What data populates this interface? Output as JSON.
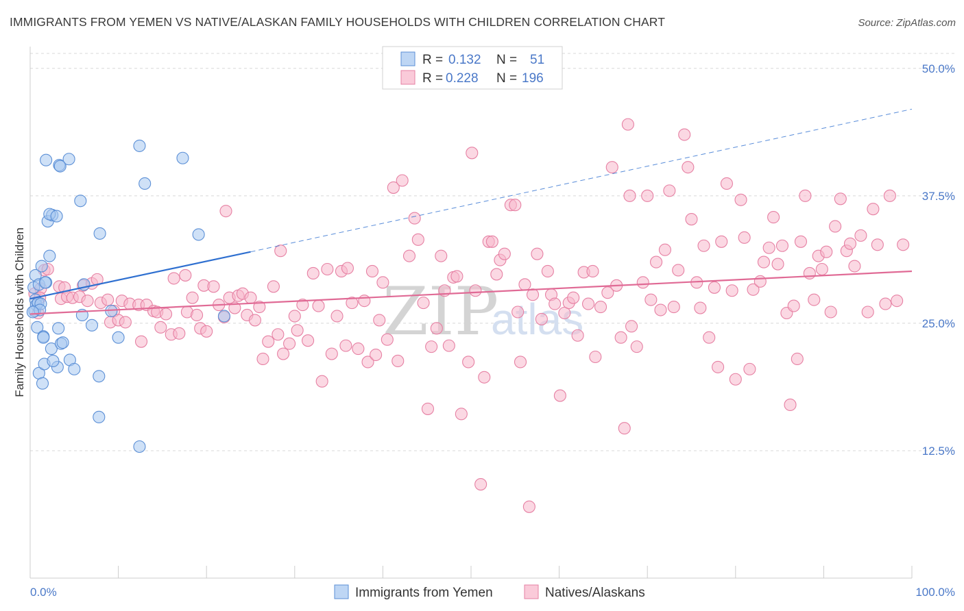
{
  "header": {
    "title": "IMMIGRANTS FROM YEMEN VS NATIVE/ALASKAN FAMILY HOUSEHOLDS WITH CHILDREN CORRELATION CHART",
    "source": "Source: ZipAtlas.com"
  },
  "watermark": {
    "zip": "ZIP",
    "atlas": "atlas"
  },
  "legend": {
    "r_label": "R =",
    "n_label": "N =",
    "rows": [
      {
        "r": "0.132",
        "n": "51",
        "color": "#a8c8f0"
      },
      {
        "r": "0.228",
        "n": "196",
        "color": "#f8b8cc"
      }
    ]
  },
  "bottom_legend": [
    "Immigrants from Yemen",
    "Natives/Alaskans"
  ],
  "colors": {
    "blue_fill": "#a8c8f0",
    "blue_stroke": "#5b8fd6",
    "blue_line": "#2e6fd0",
    "pink_fill": "#f8b8cc",
    "pink_stroke": "#e680a3",
    "pink_line": "#e06a95",
    "grid": "#d8d8d8",
    "tick_label": "#4a78c8"
  },
  "chart_data": {
    "type": "scatter",
    "title": "IMMIGRANTS FROM YEMEN VS NATIVE/ALASKAN FAMILY HOUSEHOLDS WITH CHILDREN CORRELATION CHART",
    "xlabel": "",
    "ylabel": "Family Households with Children",
    "xlim": [
      0,
      100
    ],
    "ylim": [
      0,
      52
    ],
    "x_tick_labels": [
      "0.0%",
      "100.0%"
    ],
    "y_ticks": [
      12.5,
      25.0,
      37.5,
      50.0
    ],
    "y_tick_labels": [
      "12.5%",
      "25.0%",
      "37.5%",
      "50.0%"
    ],
    "grid": true,
    "legend_position": "top-center",
    "series": [
      {
        "name": "Immigrants from Yemen",
        "R": 0.132,
        "N": 51,
        "trend": {
          "x": [
            0,
            25
          ],
          "y": [
            27.4,
            32.0
          ],
          "dashed_extension": {
            "x": [
              25,
              100
            ],
            "y": [
              32.0,
              46.0
            ]
          }
        },
        "points": [
          [
            0.4,
            28.5
          ],
          [
            0.6,
            27.3
          ],
          [
            0.7,
            26.8
          ],
          [
            0.5,
            26.2
          ],
          [
            0.9,
            27.0
          ],
          [
            0.6,
            29.7
          ],
          [
            0.8,
            24.6
          ],
          [
            1.2,
            26.9
          ],
          [
            1.0,
            28.8
          ],
          [
            1.3,
            30.6
          ],
          [
            1.8,
            29.0
          ],
          [
            2.2,
            31.6
          ],
          [
            2.0,
            35.0
          ],
          [
            2.5,
            35.6
          ],
          [
            2.2,
            35.7
          ],
          [
            3.0,
            35.5
          ],
          [
            1.8,
            41.0
          ],
          [
            3.3,
            40.5
          ],
          [
            3.4,
            40.4
          ],
          [
            4.4,
            41.1
          ],
          [
            5.7,
            37.0
          ],
          [
            7.9,
            33.8
          ],
          [
            12.4,
            42.4
          ],
          [
            13.0,
            38.7
          ],
          [
            17.3,
            41.2
          ],
          [
            19.1,
            33.7
          ],
          [
            1.0,
            20.1
          ],
          [
            1.4,
            19.1
          ],
          [
            1.6,
            21.0
          ],
          [
            1.5,
            23.7
          ],
          [
            2.4,
            22.5
          ],
          [
            3.1,
            20.7
          ],
          [
            3.2,
            24.5
          ],
          [
            3.5,
            23.0
          ],
          [
            3.7,
            23.1
          ],
          [
            4.5,
            21.4
          ],
          [
            5.0,
            20.5
          ],
          [
            5.9,
            25.8
          ],
          [
            7.0,
            24.8
          ],
          [
            7.8,
            19.8
          ],
          [
            7.8,
            15.8
          ],
          [
            9.2,
            26.2
          ],
          [
            10.0,
            23.6
          ],
          [
            12.4,
            12.9
          ],
          [
            22.0,
            25.7
          ],
          [
            6.1,
            28.8
          ],
          [
            1.1,
            26.3
          ],
          [
            0.3,
            26.1
          ],
          [
            1.7,
            29.0
          ],
          [
            1.5,
            23.6
          ],
          [
            2.6,
            21.3
          ]
        ]
      },
      {
        "name": "Natives/Alaskans",
        "R": 0.228,
        "N": 196,
        "trend": {
          "x": [
            0,
            100
          ],
          "y": [
            25.9,
            30.1
          ]
        },
        "points": [
          [
            0.5,
            27.9
          ],
          [
            0.9,
            26.0
          ],
          [
            1.2,
            28.4
          ],
          [
            1.6,
            30.2
          ],
          [
            2.0,
            30.3
          ],
          [
            1.1,
            27.5
          ],
          [
            3.3,
            28.6
          ],
          [
            3.5,
            27.4
          ],
          [
            3.9,
            28.5
          ],
          [
            4.2,
            27.6
          ],
          [
            4.8,
            27.5
          ],
          [
            5.6,
            27.6
          ],
          [
            6.0,
            28.7
          ],
          [
            6.5,
            27.2
          ],
          [
            7.0,
            28.9
          ],
          [
            7.6,
            29.3
          ],
          [
            8.0,
            27.0
          ],
          [
            8.8,
            27.3
          ],
          [
            9.1,
            25.1
          ],
          [
            9.5,
            26.2
          ],
          [
            10.0,
            25.3
          ],
          [
            10.4,
            27.2
          ],
          [
            10.8,
            25.1
          ],
          [
            11.3,
            26.9
          ],
          [
            12.3,
            26.8
          ],
          [
            12.6,
            23.2
          ],
          [
            13.2,
            26.8
          ],
          [
            14.0,
            26.2
          ],
          [
            14.4,
            26.1
          ],
          [
            14.8,
            24.6
          ],
          [
            15.4,
            25.9
          ],
          [
            16.0,
            23.9
          ],
          [
            16.3,
            29.4
          ],
          [
            16.9,
            24.0
          ],
          [
            17.6,
            29.7
          ],
          [
            17.8,
            26.1
          ],
          [
            18.4,
            27.5
          ],
          [
            18.9,
            25.8
          ],
          [
            19.3,
            24.5
          ],
          [
            19.7,
            28.7
          ],
          [
            20.0,
            24.2
          ],
          [
            20.8,
            28.6
          ],
          [
            21.4,
            26.8
          ],
          [
            22.0,
            25.6
          ],
          [
            22.2,
            36.0
          ],
          [
            22.6,
            27.5
          ],
          [
            23.2,
            26.5
          ],
          [
            23.6,
            27.7
          ],
          [
            24.1,
            27.9
          ],
          [
            24.6,
            25.8
          ],
          [
            25.0,
            27.5
          ],
          [
            25.5,
            25.3
          ],
          [
            26.0,
            26.6
          ],
          [
            26.4,
            21.5
          ],
          [
            27.0,
            23.2
          ],
          [
            27.6,
            28.6
          ],
          [
            28.1,
            23.9
          ],
          [
            28.4,
            32.1
          ],
          [
            28.7,
            22.0
          ],
          [
            29.4,
            23.0
          ],
          [
            30.0,
            25.7
          ],
          [
            30.3,
            24.3
          ],
          [
            30.9,
            26.8
          ],
          [
            31.5,
            23.3
          ],
          [
            32.1,
            29.9
          ],
          [
            32.7,
            26.7
          ],
          [
            33.1,
            19.3
          ],
          [
            33.7,
            30.3
          ],
          [
            34.2,
            22.0
          ],
          [
            34.8,
            25.7
          ],
          [
            35.3,
            30.1
          ],
          [
            35.8,
            22.8
          ],
          [
            36.0,
            30.4
          ],
          [
            36.5,
            27.0
          ],
          [
            37.2,
            22.5
          ],
          [
            37.9,
            27.2
          ],
          [
            38.3,
            21.2
          ],
          [
            38.8,
            30.1
          ],
          [
            39.2,
            21.9
          ],
          [
            39.6,
            25.3
          ],
          [
            40.0,
            29.0
          ],
          [
            40.5,
            23.4
          ],
          [
            41.2,
            38.3
          ],
          [
            41.7,
            21.3
          ],
          [
            42.2,
            39.0
          ],
          [
            43.0,
            31.6
          ],
          [
            43.6,
            35.3
          ],
          [
            44.0,
            33.2
          ],
          [
            44.6,
            27.0
          ],
          [
            45.1,
            16.6
          ],
          [
            45.5,
            22.7
          ],
          [
            46.1,
            24.5
          ],
          [
            46.6,
            31.6
          ],
          [
            47.0,
            28.2
          ],
          [
            47.5,
            22.8
          ],
          [
            48.0,
            29.5
          ],
          [
            48.4,
            29.6
          ],
          [
            48.9,
            16.1
          ],
          [
            49.7,
            21.2
          ],
          [
            50.1,
            41.7
          ],
          [
            50.5,
            28.2
          ],
          [
            51.1,
            9.2
          ],
          [
            51.5,
            19.7
          ],
          [
            52.0,
            33.0
          ],
          [
            52.4,
            33.0
          ],
          [
            52.9,
            29.8
          ],
          [
            53.3,
            31.2
          ],
          [
            53.8,
            31.8
          ],
          [
            54.5,
            36.6
          ],
          [
            55.0,
            36.6
          ],
          [
            55.6,
            21.2
          ],
          [
            56.1,
            28.8
          ],
          [
            56.6,
            7.0
          ],
          [
            57.0,
            27.8
          ],
          [
            57.5,
            31.8
          ],
          [
            58.0,
            25.4
          ],
          [
            58.7,
            30.1
          ],
          [
            59.1,
            27.8
          ],
          [
            59.5,
            26.9
          ],
          [
            60.1,
            17.9
          ],
          [
            60.6,
            26.0
          ],
          [
            61.1,
            27.0
          ],
          [
            61.6,
            27.5
          ],
          [
            62.1,
            23.8
          ],
          [
            62.8,
            30.0
          ],
          [
            63.3,
            26.9
          ],
          [
            63.8,
            30.1
          ],
          [
            64.1,
            21.7
          ],
          [
            64.7,
            26.6
          ],
          [
            65.5,
            28.0
          ],
          [
            66.0,
            40.3
          ],
          [
            66.5,
            28.7
          ],
          [
            67.0,
            23.6
          ],
          [
            67.4,
            14.7
          ],
          [
            67.8,
            44.5
          ],
          [
            68.2,
            24.7
          ],
          [
            68.8,
            22.7
          ],
          [
            69.5,
            29.0
          ],
          [
            70.0,
            37.5
          ],
          [
            70.4,
            27.3
          ],
          [
            71.0,
            31.0
          ],
          [
            71.5,
            26.3
          ],
          [
            72.0,
            32.2
          ],
          [
            72.5,
            38.0
          ],
          [
            73.0,
            26.6
          ],
          [
            73.5,
            30.2
          ],
          [
            74.2,
            43.5
          ],
          [
            74.6,
            40.3
          ],
          [
            75.0,
            35.2
          ],
          [
            75.6,
            29.0
          ],
          [
            76.0,
            26.5
          ],
          [
            76.4,
            32.6
          ],
          [
            77.0,
            23.6
          ],
          [
            77.6,
            28.5
          ],
          [
            78.0,
            20.7
          ],
          [
            78.4,
            33.0
          ],
          [
            79.0,
            38.7
          ],
          [
            79.6,
            28.2
          ],
          [
            80.0,
            19.5
          ],
          [
            80.6,
            37.1
          ],
          [
            81.0,
            33.4
          ],
          [
            81.6,
            20.5
          ],
          [
            82.0,
            28.3
          ],
          [
            82.8,
            29.1
          ],
          [
            83.2,
            31.0
          ],
          [
            83.8,
            32.4
          ],
          [
            84.3,
            35.4
          ],
          [
            84.8,
            30.8
          ],
          [
            85.3,
            32.6
          ],
          [
            85.8,
            26.0
          ],
          [
            86.2,
            17.0
          ],
          [
            86.6,
            26.7
          ],
          [
            87.0,
            21.5
          ],
          [
            87.4,
            33.0
          ],
          [
            87.9,
            37.5
          ],
          [
            88.4,
            29.9
          ],
          [
            88.9,
            27.3
          ],
          [
            89.4,
            31.6
          ],
          [
            89.8,
            30.3
          ],
          [
            90.3,
            32.0
          ],
          [
            90.8,
            26.1
          ],
          [
            91.3,
            34.5
          ],
          [
            91.9,
            37.2
          ],
          [
            92.6,
            32.1
          ],
          [
            93.0,
            32.8
          ],
          [
            93.5,
            30.6
          ],
          [
            94.2,
            33.6
          ],
          [
            95.0,
            26.1
          ],
          [
            95.6,
            36.2
          ],
          [
            96.1,
            32.7
          ],
          [
            97.0,
            26.9
          ],
          [
            97.5,
            37.5
          ],
          [
            98.3,
            27.2
          ],
          [
            99.0,
            32.7
          ],
          [
            68.0,
            37.5
          ],
          [
            55.3,
            26.1
          ]
        ]
      }
    ]
  }
}
